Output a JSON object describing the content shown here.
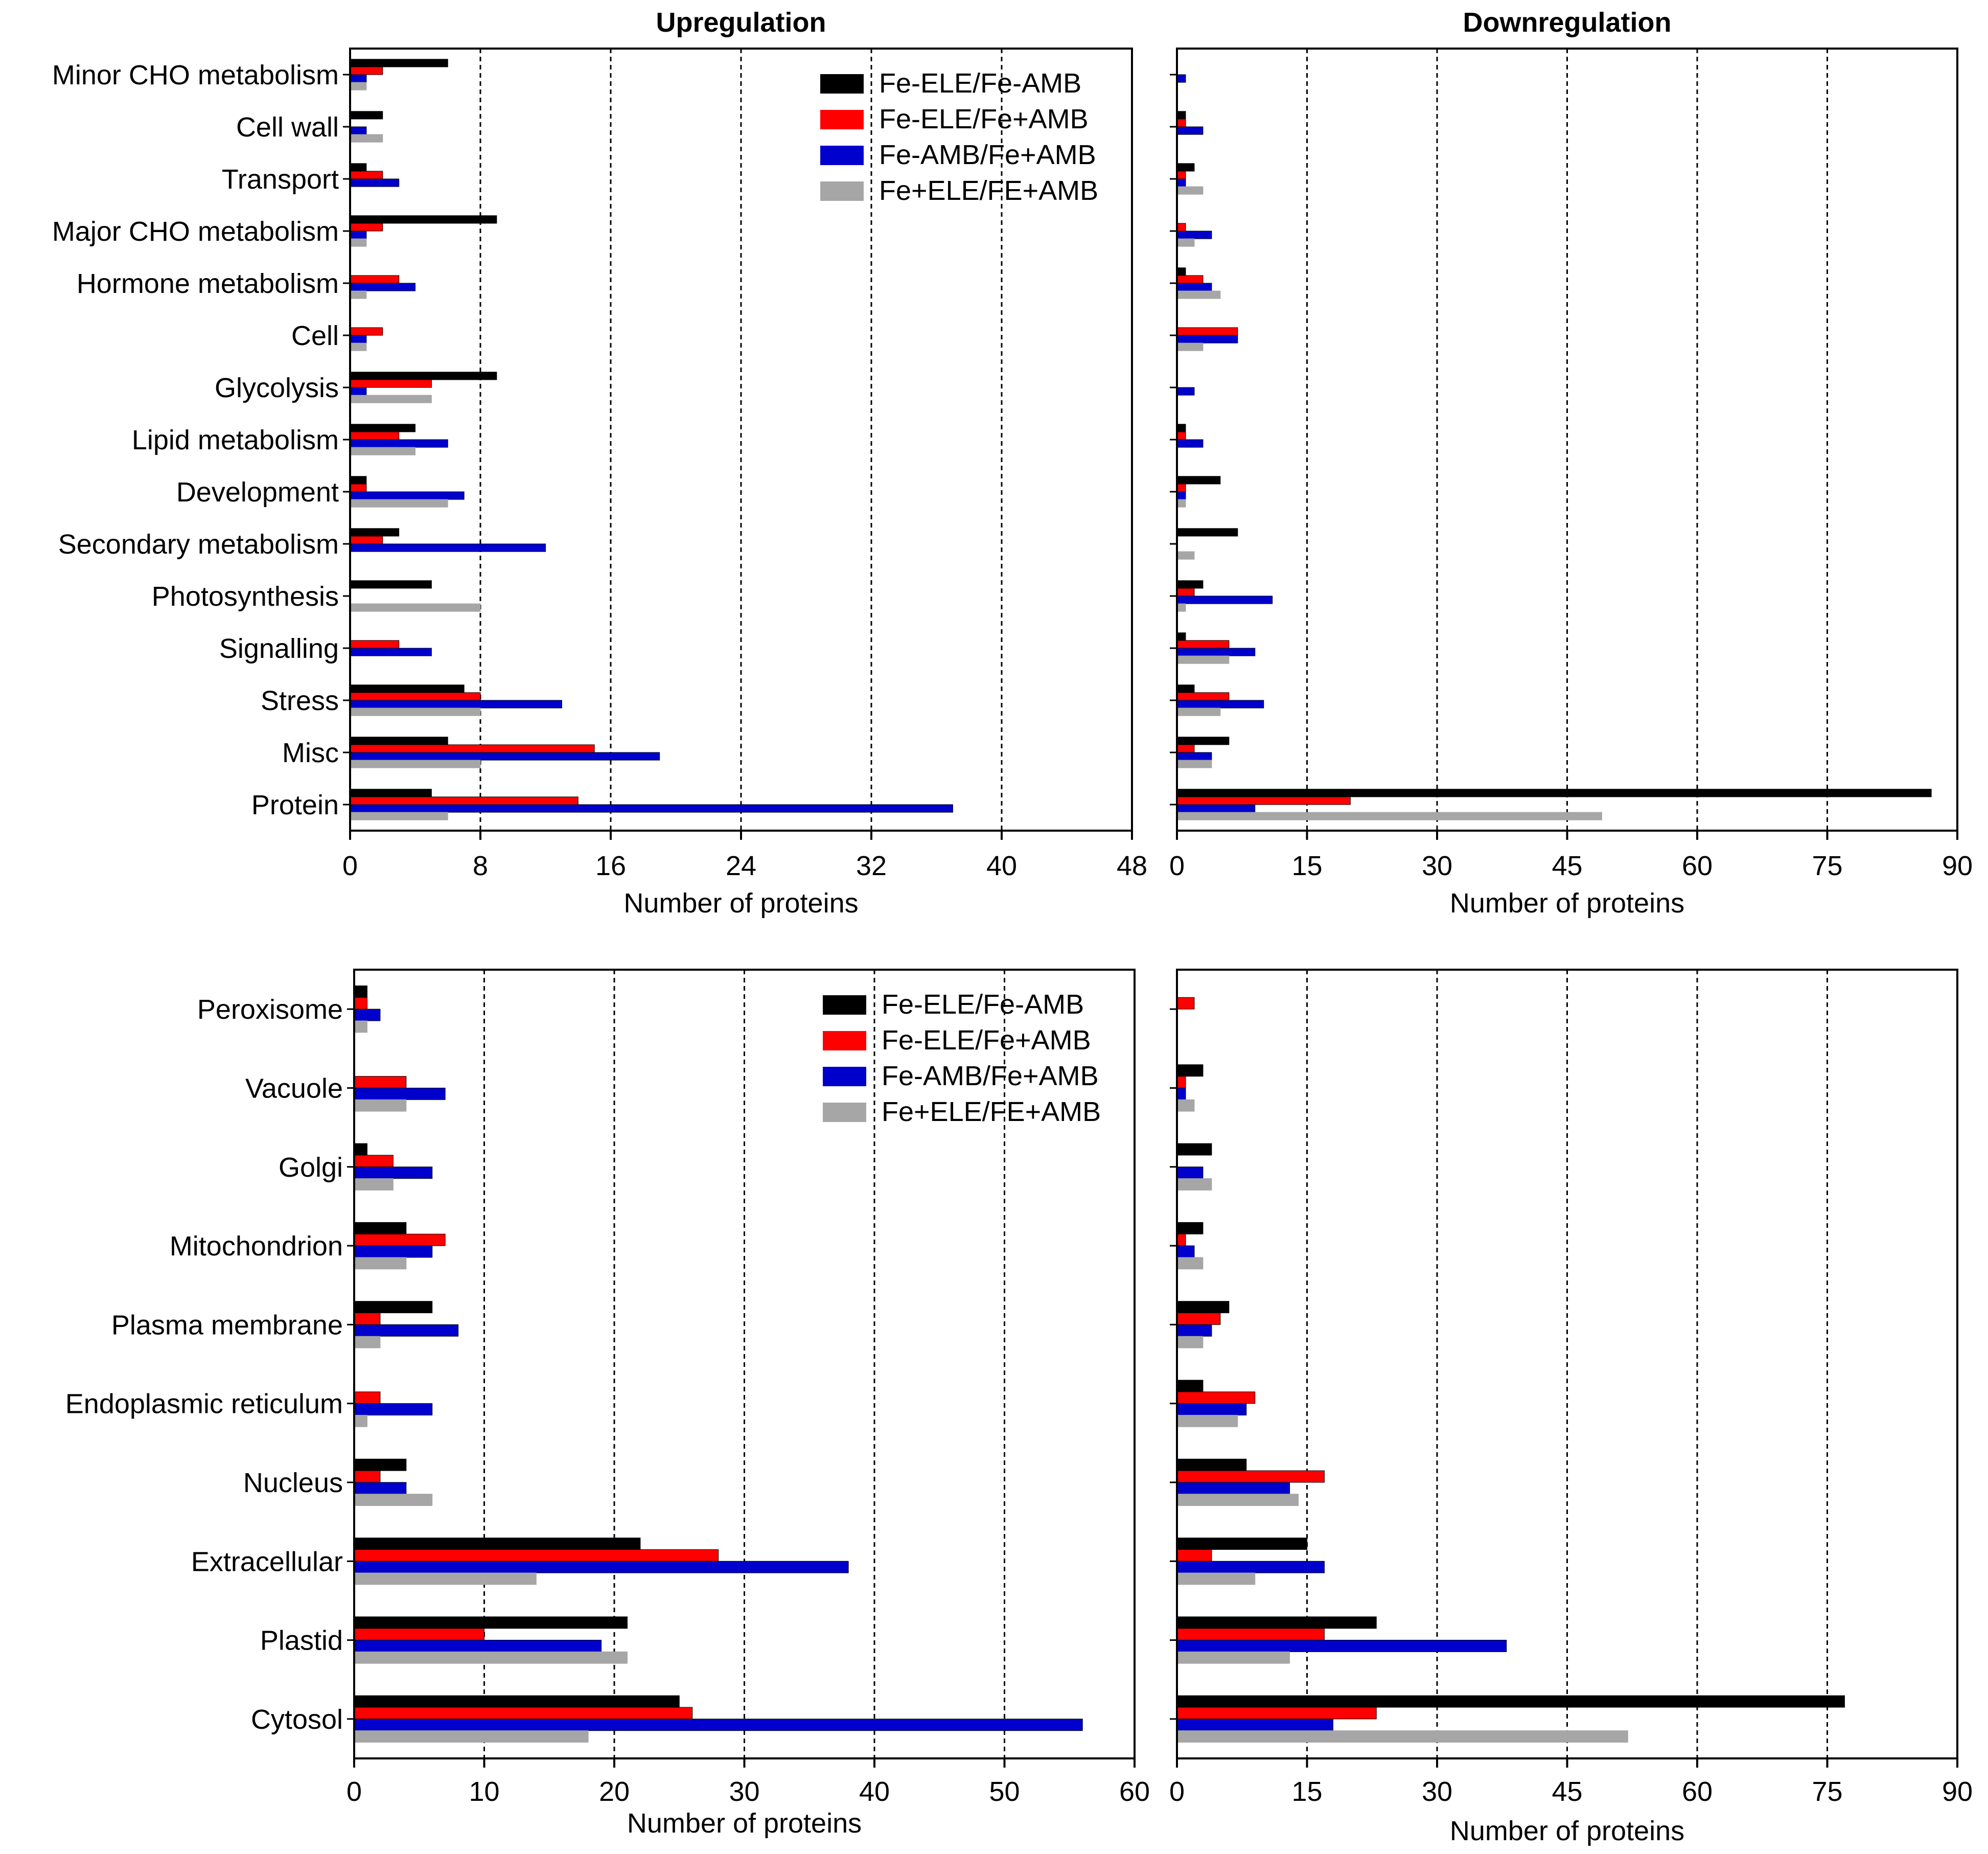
{
  "legend": [
    {
      "name": "Fe-ELE/Fe-AMB",
      "color": "#000000"
    },
    {
      "name": "Fe-ELE/Fe+AMB",
      "color": "#ff0000"
    },
    {
      "name": "Fe-AMB/Fe+AMB",
      "color": "#0000cc"
    },
    {
      "name": "Fe+ELE/FE+AMB",
      "color": "#a6a6a6"
    }
  ],
  "chart_data": [
    {
      "id": "func-up",
      "type": "bar",
      "orientation": "horizontal",
      "title": "Upregulation",
      "xlabel": "Number of proteins",
      "ylabel": "",
      "xlim": [
        0,
        48
      ],
      "xticks": [
        "0",
        "8",
        "16",
        "24",
        "32",
        "40",
        "48"
      ],
      "grid": "vertical dashed",
      "legend_position": "top-right",
      "categories": [
        "Minor CHO metabolism",
        "Cell wall",
        "Transport",
        "Major CHO metabolism",
        "Hormone metabolism",
        "Cell",
        "Glycolysis",
        "Lipid metabolism",
        "Development",
        "Secondary metabolism",
        "Photosynthesis",
        "Signalling",
        "Stress",
        "Misc",
        "Protein"
      ],
      "series": [
        {
          "name": "Fe-ELE/Fe-AMB",
          "values": [
            6,
            2,
            1,
            9,
            0,
            0,
            9,
            4,
            1,
            3,
            5,
            0,
            7,
            6,
            5
          ]
        },
        {
          "name": "Fe-ELE/Fe+AMB",
          "values": [
            2,
            0,
            2,
            2,
            3,
            2,
            5,
            3,
            1,
            2,
            0,
            3,
            8,
            15,
            14
          ]
        },
        {
          "name": "Fe-AMB/Fe+AMB",
          "values": [
            1,
            1,
            3,
            1,
            4,
            1,
            1,
            6,
            7,
            12,
            0,
            5,
            13,
            19,
            37
          ]
        },
        {
          "name": "Fe+ELE/FE+AMB",
          "values": [
            1,
            2,
            0,
            1,
            1,
            1,
            5,
            4,
            6,
            0,
            8,
            0,
            8,
            8,
            6
          ]
        }
      ]
    },
    {
      "id": "func-down",
      "type": "bar",
      "orientation": "horizontal",
      "title": "Downregulation",
      "xlabel": "Number of proteins",
      "ylabel": "",
      "xlim": [
        0,
        90
      ],
      "xticks": [
        "0",
        "15",
        "30",
        "45",
        "60",
        "75",
        "90"
      ],
      "grid": "vertical dashed",
      "categories": [
        "Minor CHO metabolism",
        "Cell wall",
        "Transport",
        "Major CHO metabolism",
        "Hormone metabolism",
        "Cell",
        "Glycolysis",
        "Lipid metabolism",
        "Development",
        "Secondary metabolism",
        "Photosynthesis",
        "Signalling",
        "Stress",
        "Misc",
        "Protein"
      ],
      "series": [
        {
          "name": "Fe-ELE/Fe-AMB",
          "values": [
            0,
            1,
            2,
            0,
            1,
            0,
            0,
            1,
            5,
            7,
            3,
            1,
            2,
            6,
            87
          ]
        },
        {
          "name": "Fe-ELE/Fe+AMB",
          "values": [
            0,
            1,
            1,
            1,
            3,
            7,
            0,
            1,
            1,
            0,
            2,
            6,
            6,
            2,
            20
          ]
        },
        {
          "name": "Fe-AMB/Fe+AMB",
          "values": [
            1,
            3,
            1,
            4,
            4,
            7,
            2,
            3,
            1,
            0,
            11,
            9,
            10,
            4,
            9
          ]
        },
        {
          "name": "Fe+ELE/FE+AMB",
          "values": [
            0,
            0,
            3,
            2,
            5,
            3,
            0,
            0,
            1,
            2,
            1,
            6,
            5,
            4,
            49
          ]
        }
      ]
    },
    {
      "id": "loc-up",
      "type": "bar",
      "orientation": "horizontal",
      "title": "",
      "xlabel": "Number of proteins",
      "ylabel": "",
      "xlim": [
        0,
        60
      ],
      "xticks": [
        "0",
        "10",
        "20",
        "30",
        "40",
        "50",
        "60"
      ],
      "grid": "vertical dashed",
      "legend_position": "top-right",
      "categories": [
        "Peroxisome",
        "Vacuole",
        "Golgi",
        "Mitochondrion",
        "Plasma membrane",
        "Endoplasmic reticulum",
        "Nucleus",
        "Extracellular",
        "Plastid",
        "Cytosol"
      ],
      "series": [
        {
          "name": "Fe-ELE/Fe-AMB",
          "values": [
            1,
            0,
            1,
            4,
            6,
            0,
            4,
            22,
            21,
            25
          ]
        },
        {
          "name": "Fe-ELE/Fe+AMB",
          "values": [
            1,
            4,
            3,
            7,
            2,
            2,
            2,
            28,
            10,
            26
          ]
        },
        {
          "name": "Fe-AMB/Fe+AMB",
          "values": [
            2,
            7,
            6,
            6,
            8,
            6,
            4,
            38,
            19,
            56
          ]
        },
        {
          "name": "Fe+ELE/FE+AMB",
          "values": [
            1,
            4,
            3,
            4,
            2,
            1,
            6,
            14,
            21,
            18
          ]
        }
      ]
    },
    {
      "id": "loc-down",
      "type": "bar",
      "orientation": "horizontal",
      "title": "",
      "xlabel": "Number of proteins",
      "ylabel": "",
      "xlim": [
        0,
        90
      ],
      "xticks": [
        "0",
        "15",
        "30",
        "45",
        "60",
        "75",
        "90"
      ],
      "grid": "vertical dashed",
      "categories": [
        "Peroxisome",
        "Vacuole",
        "Golgi",
        "Mitochondrion",
        "Plasma membrane",
        "Endoplasmic reticulum",
        "Nucleus",
        "Extracellular",
        "Plastid",
        "Cytosol"
      ],
      "series": [
        {
          "name": "Fe-ELE/Fe-AMB",
          "values": [
            0,
            3,
            4,
            3,
            6,
            3,
            8,
            15,
            23,
            77
          ]
        },
        {
          "name": "Fe-ELE/Fe+AMB",
          "values": [
            2,
            1,
            0,
            1,
            5,
            9,
            17,
            4,
            17,
            23
          ]
        },
        {
          "name": "Fe-AMB/Fe+AMB",
          "values": [
            0,
            1,
            3,
            2,
            4,
            8,
            13,
            17,
            38,
            18
          ]
        },
        {
          "name": "Fe+ELE/FE+AMB",
          "values": [
            0,
            2,
            4,
            3,
            3,
            7,
            14,
            9,
            13,
            52
          ]
        }
      ]
    }
  ]
}
